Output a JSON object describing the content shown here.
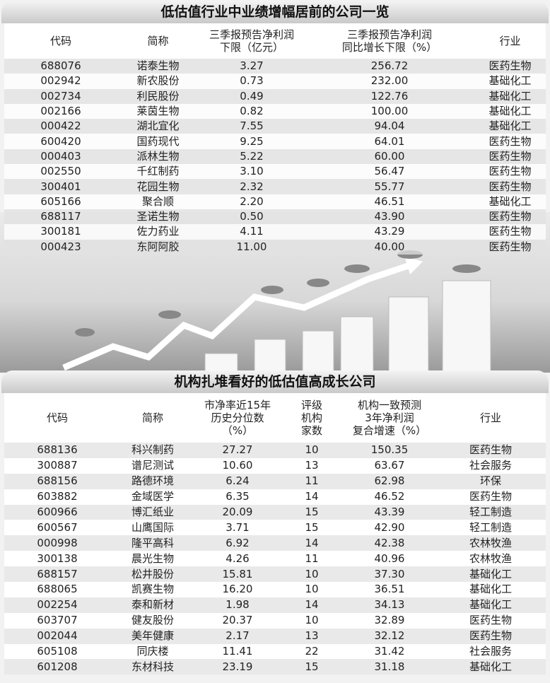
{
  "table1": {
    "title": "低估值行业中业绩增幅居前的公司一览",
    "headers": [
      "代码",
      "简称",
      "三季报预告净利润\n下限（亿元）",
      "三季报预告净利润\n同比增长下限（%）",
      "行业"
    ],
    "rows": [
      [
        "688076",
        "诺泰生物",
        "3.27",
        "256.72",
        "医药生物"
      ],
      [
        "002942",
        "新农股份",
        "0.73",
        "232.00",
        "基础化工"
      ],
      [
        "002734",
        "利民股份",
        "0.49",
        "122.76",
        "基础化工"
      ],
      [
        "002166",
        "莱茵生物",
        "0.82",
        "100.00",
        "基础化工"
      ],
      [
        "000422",
        "湖北宜化",
        "7.55",
        "94.04",
        "基础化工"
      ],
      [
        "600420",
        "国药现代",
        "9.25",
        "64.01",
        "医药生物"
      ],
      [
        "000403",
        "派林生物",
        "5.22",
        "60.00",
        "医药生物"
      ],
      [
        "002550",
        "千红制药",
        "3.10",
        "56.47",
        "医药生物"
      ],
      [
        "300401",
        "花园生物",
        "2.32",
        "55.77",
        "医药生物"
      ],
      [
        "605166",
        "聚合顺",
        "2.20",
        "46.51",
        "基础化工"
      ],
      [
        "688117",
        "圣诺生物",
        "0.50",
        "43.90",
        "医药生物"
      ],
      [
        "300181",
        "佐力药业",
        "4.11",
        "43.29",
        "医药生物"
      ],
      [
        "000423",
        "东阿阿胶",
        "11.00",
        "40.00",
        "医药生物"
      ]
    ]
  },
  "table2": {
    "title": "机构扎堆看好的低估值高成长公司",
    "headers": [
      "代码",
      "简称",
      "市净率近15年\n历史分位数\n（%）",
      "评级\n机构\n家数",
      "机构一致预测\n3年净利润\n复合增速（%）",
      "行业"
    ],
    "rows": [
      [
        "688136",
        "科兴制药",
        "27.27",
        "10",
        "150.35",
        "医药生物"
      ],
      [
        "300887",
        "谱尼测试",
        "10.60",
        "13",
        "63.67",
        "社会服务"
      ],
      [
        "688156",
        "路德环境",
        "6.24",
        "11",
        "62.98",
        "环保"
      ],
      [
        "603882",
        "金域医学",
        "6.35",
        "14",
        "46.52",
        "医药生物"
      ],
      [
        "600966",
        "博汇纸业",
        "20.09",
        "15",
        "43.39",
        "轻工制造"
      ],
      [
        "600567",
        "山鹰国际",
        "3.71",
        "15",
        "42.90",
        "轻工制造"
      ],
      [
        "000998",
        "隆平高科",
        "6.92",
        "14",
        "42.38",
        "农林牧渔"
      ],
      [
        "300138",
        "晨光生物",
        "4.26",
        "11",
        "40.96",
        "农林牧渔"
      ],
      [
        "688157",
        "松井股份",
        "15.81",
        "10",
        "37.30",
        "基础化工"
      ],
      [
        "688065",
        "凯赛生物",
        "16.20",
        "10",
        "36.51",
        "基础化工"
      ],
      [
        "002254",
        "泰和新材",
        "1.98",
        "14",
        "34.13",
        "基础化工"
      ],
      [
        "603707",
        "健友股份",
        "20.37",
        "10",
        "32.89",
        "医药生物"
      ],
      [
        "002044",
        "美年健康",
        "2.17",
        "13",
        "32.12",
        "医药生物"
      ],
      [
        "605108",
        "同庆楼",
        "11.41",
        "22",
        "31.42",
        "社会服务"
      ],
      [
        "601208",
        "东材科技",
        "23.19",
        "15",
        "31.18",
        "基础化工"
      ]
    ]
  }
}
